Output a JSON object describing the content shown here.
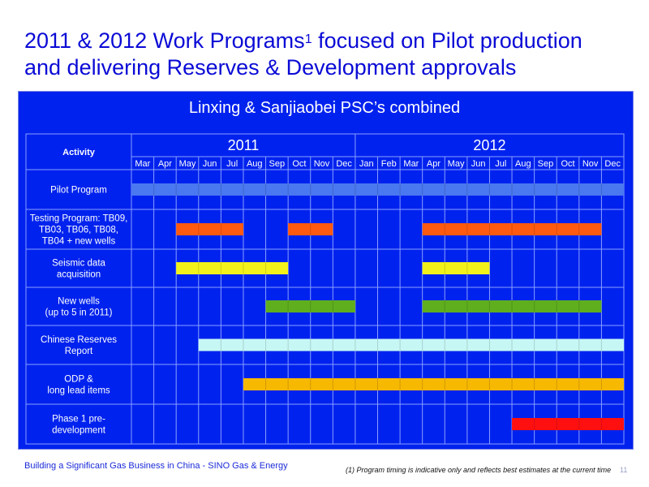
{
  "title": {
    "line1_prefix": "2011 & 2012 Work Programs",
    "line1_sup": "1",
    "line1_suffix": " focused on Pilot production",
    "line2": "and delivering Reserves & Development approvals"
  },
  "subtitle": "Linxing & Sanjiaobei PSC’s combined",
  "table": {
    "activity_header": "Activity",
    "years": [
      {
        "label": "2011",
        "start": 0,
        "count": 10
      },
      {
        "label": "2012",
        "start": 10,
        "count": 12
      }
    ],
    "months": [
      "Mar",
      "Apr",
      "May",
      "Jun",
      "Jul",
      "Aug",
      "Sep",
      "Oct",
      "Nov",
      "Dec",
      "Jan",
      "Feb",
      "Mar",
      "Apr",
      "May",
      "Jun",
      "Jul",
      "Aug",
      "Sep",
      "Oct",
      "Nov",
      "Dec"
    ],
    "rows": [
      {
        "lines": [
          "Pilot Program"
        ],
        "bars": [
          {
            "start": 0,
            "end": 22,
            "color": "#4a78f0"
          }
        ]
      },
      {
        "lines": [
          "Testing Program: TB09,",
          "TB03, TB06, TB08,",
          "TB04 + new wells"
        ],
        "bars": [
          {
            "start": 2,
            "end": 5,
            "color": "#ff5a10"
          },
          {
            "start": 7,
            "end": 9,
            "color": "#ff5a10"
          },
          {
            "start": 13,
            "end": 21,
            "color": "#ff5a10"
          }
        ]
      },
      {
        "lines": [
          "Seismic data",
          "acquisition"
        ],
        "bars": [
          {
            "start": 2,
            "end": 7,
            "color": "#f2f21a"
          },
          {
            "start": 13,
            "end": 16,
            "color": "#f2f21a"
          }
        ]
      },
      {
        "lines": [
          "New wells",
          "(up to 5 in 2011)"
        ],
        "bars": [
          {
            "start": 6,
            "end": 10,
            "color": "#5fae1e"
          },
          {
            "start": 13,
            "end": 21,
            "color": "#5fae1e"
          }
        ]
      },
      {
        "lines": [
          "Chinese Reserves",
          "Report"
        ],
        "bars": [
          {
            "start": 3,
            "end": 22,
            "color": "#c6f7f4"
          }
        ]
      },
      {
        "lines": [
          "ODP &",
          "long lead items"
        ],
        "bars": [
          {
            "start": 5,
            "end": 22,
            "color": "#f7b800"
          }
        ]
      },
      {
        "lines": [
          "Phase 1 pre-",
          "development"
        ],
        "bars": [
          {
            "start": 17,
            "end": 22,
            "color": "#ff1010"
          }
        ]
      }
    ]
  },
  "footer": {
    "left": "Building a Significant Gas Business in China - SINO Gas & Energy",
    "note": "(1) Program timing is indicative only and reflects best estimates at the current time",
    "page": "11"
  },
  "colors": {
    "panel": "#0022ee",
    "grid_line": "#8aa0ff",
    "title": "#0a0ad6"
  }
}
